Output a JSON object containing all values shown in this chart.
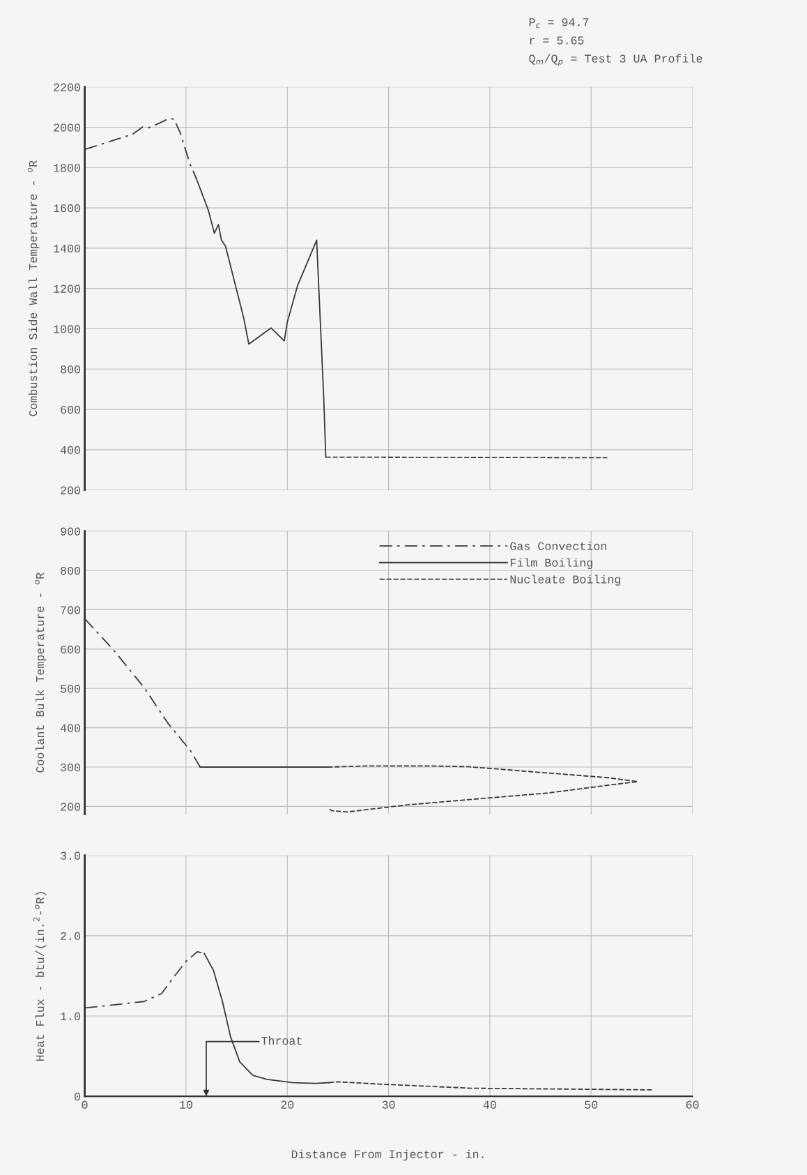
{
  "chart_data": [
    {
      "type": "line",
      "ylabel": "Combustion Side Wall Temperature - $^{o}$R",
      "annotations": [
        "P$_{c}$ = 94.7",
        "r = 5.65",
        "Q$_{m}$/Q$_{p}$ = Test 3 UA Profile"
      ],
      "xlim": [
        0,
        60
      ],
      "xticks": [
        0,
        10,
        20,
        30,
        40,
        50,
        60
      ],
      "ylim": [
        200,
        2200
      ],
      "yticks": [
        200,
        400,
        600,
        800,
        1000,
        1200,
        1400,
        1600,
        1800,
        2000,
        2200
      ],
      "tick_labels": "y",
      "grid": true,
      "legend": false,
      "series": [
        {
          "color": "#3a3a3a",
          "line_style": "dashdot",
          "x": [
            0,
            1.9,
            4.75,
            5.7,
            6.4,
            7.4,
            8.2,
            8.8,
            9.4,
            10.4,
            11.0
          ],
          "values": [
            1890,
            1920,
            1966,
            2001,
            1999,
            2021,
            2041,
            2041,
            1976,
            1817,
            1748
          ]
        },
        {
          "color": "#3a3a3a",
          "line_style": "solid",
          "x": [
            11.0,
            12.2,
            12.8,
            13.2,
            13.5,
            13.9,
            15.7,
            16.2,
            18.4,
            19.7,
            20.0,
            21.0,
            22.9,
            23.6,
            23.8
          ],
          "values": [
            1748,
            1589,
            1474,
            1517,
            1440,
            1410,
            1053,
            924,
            1004,
            940,
            1033,
            1212,
            1440,
            656,
            363
          ]
        },
        {
          "color": "#3a3a3a",
          "line_style": "dashed",
          "x": [
            23.8,
            51.6
          ],
          "values": [
            363,
            360
          ]
        }
      ]
    },
    {
      "type": "line",
      "ylabel": "Coolant Bulk Temperature - $^{o}$R",
      "xlim": [
        0,
        60
      ],
      "xticks": [
        0,
        10,
        20,
        30,
        40,
        50,
        60
      ],
      "ylim": [
        180,
        900
      ],
      "yticks": [
        200,
        300,
        400,
        500,
        600,
        700,
        800,
        900
      ],
      "tick_labels": "y",
      "grid": true,
      "legend": "top right",
      "series": [
        {
          "name": "Gas Convection",
          "color": "#3a3a3a",
          "line_style": "dashdot",
          "x": [
            0,
            2.9,
            5.9,
            8.2,
            10.4,
            11.4
          ],
          "values": [
            677,
            596,
            501,
            412,
            343,
            300
          ]
        },
        {
          "name": "Film Boiling",
          "color": "#3a3a3a",
          "line_style": "solid",
          "x": [
            11.4,
            24.0
          ],
          "values": [
            300,
            300
          ]
        },
        {
          "name": "Nucleate Boiling",
          "color": "#3a3a3a",
          "line_style": "dashed",
          "x": [
            24.0,
            27.9,
            33.9,
            37.8,
            41.8,
            47.7,
            51.7,
            54.6,
            51.7,
            45.7,
            37.8,
            31.9,
            27.9,
            26.0,
            24.4,
            24.0
          ],
          "values": [
            300,
            303,
            303,
            301,
            293,
            281,
            273,
            263,
            254,
            234,
            217,
            204,
            192,
            186,
            189,
            196
          ]
        }
      ]
    },
    {
      "type": "line",
      "xlabel": "Distance From Injector - in.",
      "ylabel": "Heat Flux - btu/(in.$^{2}$-$^{o}$R)",
      "annotations": [
        "Throat"
      ],
      "xlim": [
        0,
        60
      ],
      "xticks": [
        0,
        10,
        20,
        30,
        40,
        50,
        60
      ],
      "ylim": [
        0,
        3
      ],
      "yticks": [
        0,
        {
          "value": 1,
          "label": "1.0"
        },
        {
          "value": 2,
          "label": "2.0"
        },
        {
          "value": 3,
          "label": "3.0"
        }
      ],
      "grid": true,
      "legend": false,
      "series": [
        {
          "color": "#3a3a3a",
          "line_style": "dashdot",
          "x": [
            0,
            3.0,
            5.85,
            7.6,
            8.7,
            10.0,
            11.1,
            11.8
          ],
          "values": [
            1.1,
            1.14,
            1.18,
            1.28,
            1.47,
            1.68,
            1.8,
            1.78
          ]
        },
        {
          "color": "#3a3a3a",
          "line_style": "solid",
          "x": [
            11.8,
            12.7,
            13.6,
            14.4,
            15.3,
            16.6,
            18.0,
            20.6,
            22.8,
            24.1
          ],
          "values": [
            1.78,
            1.57,
            1.18,
            0.74,
            0.43,
            0.26,
            0.21,
            0.17,
            0.16,
            0.17
          ]
        },
        {
          "color": "#3a3a3a",
          "line_style": "dashed",
          "x": [
            24.1,
            25.0,
            29.4,
            38.2,
            56.0
          ],
          "values": [
            0.17,
            0.18,
            0.15,
            0.1,
            0.08
          ]
        }
      ]
    }
  ]
}
